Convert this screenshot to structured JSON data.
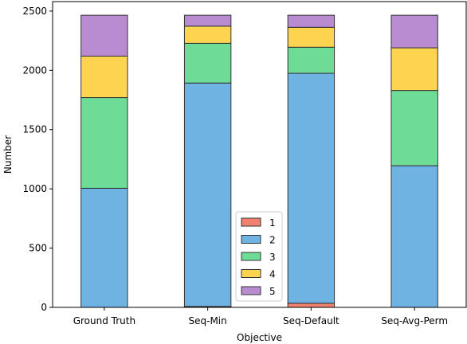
{
  "chart_data": {
    "type": "bar",
    "stacked": true,
    "categories": [
      "Ground Truth",
      "Seq-Min",
      "Seq-Default",
      "Seq-Avg-Perm"
    ],
    "series": [
      {
        "name": "1",
        "color": "#f1826f",
        "values": [
          0,
          8,
          35,
          0
        ]
      },
      {
        "name": "2",
        "color": "#6fb3e2",
        "values": [
          1005,
          1885,
          1940,
          1195
        ]
      },
      {
        "name": "3",
        "color": "#6ddc97",
        "values": [
          765,
          335,
          220,
          635
        ]
      },
      {
        "name": "4",
        "color": "#fdd44f",
        "values": [
          350,
          145,
          168,
          360
        ]
      },
      {
        "name": "5",
        "color": "#b98cd1",
        "values": [
          345,
          92,
          102,
          275
        ]
      }
    ],
    "xlabel": "Objective",
    "ylabel": "Number",
    "ylim": [
      0,
      2580
    ],
    "yticks": [
      0,
      500,
      1000,
      1500,
      2000,
      2500
    ],
    "grid": false,
    "legend_position": "lower-center"
  }
}
